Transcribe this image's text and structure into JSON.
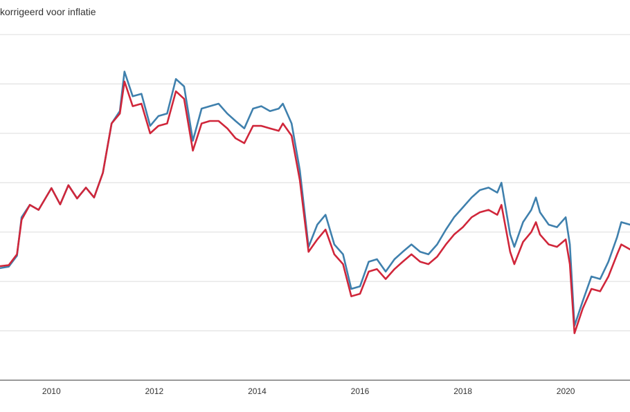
{
  "chart_data": {
    "type": "line",
    "title": "korrigeerd voor inflatie",
    "xlabel": "",
    "ylabel": "",
    "x_ticks": [
      "2010",
      "2012",
      "2014",
      "2016",
      "2018",
      "2020"
    ],
    "xlim": [
      2009.0,
      2021.25
    ],
    "ylim": [
      0,
      7
    ],
    "y_gridlines": [
      1,
      2,
      3,
      4,
      5,
      6,
      7
    ],
    "grid": true,
    "colors": {
      "series_blue": "#3f80ad",
      "series_red": "#d0263a",
      "grid": "#dcdcdc",
      "axis": "#333333"
    },
    "series": [
      {
        "color": "#3f80ad",
        "points": [
          [
            2009.0,
            2.27
          ],
          [
            2009.17,
            2.3
          ],
          [
            2009.33,
            2.52
          ],
          [
            2009.42,
            3.3
          ],
          [
            2009.58,
            3.55
          ],
          [
            2009.75,
            3.45
          ],
          [
            2010.0,
            3.89
          ],
          [
            2010.17,
            3.56
          ],
          [
            2010.33,
            3.95
          ],
          [
            2010.5,
            3.68
          ],
          [
            2010.67,
            3.9
          ],
          [
            2010.83,
            3.7
          ],
          [
            2011.0,
            4.2
          ],
          [
            2011.17,
            5.2
          ],
          [
            2011.33,
            5.45
          ],
          [
            2011.42,
            6.25
          ],
          [
            2011.58,
            5.75
          ],
          [
            2011.75,
            5.8
          ],
          [
            2011.92,
            5.15
          ],
          [
            2012.08,
            5.35
          ],
          [
            2012.25,
            5.4
          ],
          [
            2012.42,
            6.1
          ],
          [
            2012.58,
            5.95
          ],
          [
            2012.75,
            4.85
          ],
          [
            2012.92,
            5.5
          ],
          [
            2013.08,
            5.55
          ],
          [
            2013.25,
            5.6
          ],
          [
            2013.42,
            5.4
          ],
          [
            2013.58,
            5.25
          ],
          [
            2013.75,
            5.1
          ],
          [
            2013.92,
            5.5
          ],
          [
            2014.08,
            5.55
          ],
          [
            2014.25,
            5.45
          ],
          [
            2014.42,
            5.5
          ],
          [
            2014.5,
            5.6
          ],
          [
            2014.67,
            5.2
          ],
          [
            2014.83,
            4.25
          ],
          [
            2015.0,
            2.7
          ],
          [
            2015.17,
            3.15
          ],
          [
            2015.33,
            3.35
          ],
          [
            2015.5,
            2.75
          ],
          [
            2015.67,
            2.55
          ],
          [
            2015.83,
            1.85
          ],
          [
            2016.0,
            1.9
          ],
          [
            2016.17,
            2.4
          ],
          [
            2016.33,
            2.45
          ],
          [
            2016.5,
            2.2
          ],
          [
            2016.67,
            2.45
          ],
          [
            2016.83,
            2.6
          ],
          [
            2017.0,
            2.75
          ],
          [
            2017.17,
            2.6
          ],
          [
            2017.33,
            2.55
          ],
          [
            2017.5,
            2.75
          ],
          [
            2017.67,
            3.05
          ],
          [
            2017.83,
            3.3
          ],
          [
            2018.0,
            3.5
          ],
          [
            2018.17,
            3.7
          ],
          [
            2018.33,
            3.85
          ],
          [
            2018.5,
            3.9
          ],
          [
            2018.67,
            3.8
          ],
          [
            2018.75,
            4.0
          ],
          [
            2018.92,
            2.95
          ],
          [
            2019.0,
            2.7
          ],
          [
            2019.17,
            3.2
          ],
          [
            2019.33,
            3.45
          ],
          [
            2019.42,
            3.7
          ],
          [
            2019.5,
            3.4
          ],
          [
            2019.67,
            3.15
          ],
          [
            2019.83,
            3.1
          ],
          [
            2020.0,
            3.3
          ],
          [
            2020.08,
            2.75
          ],
          [
            2020.17,
            1.1
          ],
          [
            2020.33,
            1.6
          ],
          [
            2020.5,
            2.1
          ],
          [
            2020.67,
            2.05
          ],
          [
            2020.83,
            2.4
          ],
          [
            2021.0,
            2.9
          ],
          [
            2021.08,
            3.2
          ],
          [
            2021.25,
            3.15
          ]
        ]
      },
      {
        "color": "#d0263a",
        "points": [
          [
            2009.0,
            2.31
          ],
          [
            2009.17,
            2.33
          ],
          [
            2009.33,
            2.55
          ],
          [
            2009.42,
            3.25
          ],
          [
            2009.58,
            3.55
          ],
          [
            2009.75,
            3.45
          ],
          [
            2010.0,
            3.89
          ],
          [
            2010.17,
            3.56
          ],
          [
            2010.33,
            3.95
          ],
          [
            2010.5,
            3.68
          ],
          [
            2010.67,
            3.9
          ],
          [
            2010.83,
            3.7
          ],
          [
            2011.0,
            4.2
          ],
          [
            2011.17,
            5.2
          ],
          [
            2011.33,
            5.4
          ],
          [
            2011.42,
            6.05
          ],
          [
            2011.58,
            5.55
          ],
          [
            2011.75,
            5.6
          ],
          [
            2011.92,
            5.0
          ],
          [
            2012.08,
            5.15
          ],
          [
            2012.25,
            5.2
          ],
          [
            2012.42,
            5.85
          ],
          [
            2012.58,
            5.7
          ],
          [
            2012.75,
            4.65
          ],
          [
            2012.92,
            5.2
          ],
          [
            2013.08,
            5.25
          ],
          [
            2013.25,
            5.25
          ],
          [
            2013.42,
            5.1
          ],
          [
            2013.58,
            4.9
          ],
          [
            2013.75,
            4.8
          ],
          [
            2013.92,
            5.15
          ],
          [
            2014.08,
            5.15
          ],
          [
            2014.25,
            5.1
          ],
          [
            2014.42,
            5.05
          ],
          [
            2014.5,
            5.2
          ],
          [
            2014.67,
            4.95
          ],
          [
            2014.83,
            4.05
          ],
          [
            2015.0,
            2.6
          ],
          [
            2015.17,
            2.85
          ],
          [
            2015.33,
            3.05
          ],
          [
            2015.5,
            2.55
          ],
          [
            2015.67,
            2.35
          ],
          [
            2015.83,
            1.7
          ],
          [
            2016.0,
            1.75
          ],
          [
            2016.17,
            2.2
          ],
          [
            2016.33,
            2.25
          ],
          [
            2016.5,
            2.05
          ],
          [
            2016.67,
            2.25
          ],
          [
            2016.83,
            2.4
          ],
          [
            2017.0,
            2.55
          ],
          [
            2017.17,
            2.4
          ],
          [
            2017.33,
            2.35
          ],
          [
            2017.5,
            2.5
          ],
          [
            2017.67,
            2.75
          ],
          [
            2017.83,
            2.95
          ],
          [
            2018.0,
            3.1
          ],
          [
            2018.17,
            3.3
          ],
          [
            2018.33,
            3.4
          ],
          [
            2018.5,
            3.45
          ],
          [
            2018.67,
            3.35
          ],
          [
            2018.75,
            3.55
          ],
          [
            2018.92,
            2.6
          ],
          [
            2019.0,
            2.35
          ],
          [
            2019.17,
            2.8
          ],
          [
            2019.33,
            3.0
          ],
          [
            2019.42,
            3.2
          ],
          [
            2019.5,
            2.95
          ],
          [
            2019.67,
            2.75
          ],
          [
            2019.83,
            2.7
          ],
          [
            2020.0,
            2.85
          ],
          [
            2020.08,
            2.35
          ],
          [
            2020.17,
            0.95
          ],
          [
            2020.33,
            1.45
          ],
          [
            2020.5,
            1.85
          ],
          [
            2020.67,
            1.8
          ],
          [
            2020.83,
            2.1
          ],
          [
            2021.0,
            2.55
          ],
          [
            2021.08,
            2.75
          ],
          [
            2021.25,
            2.65
          ]
        ]
      }
    ]
  }
}
